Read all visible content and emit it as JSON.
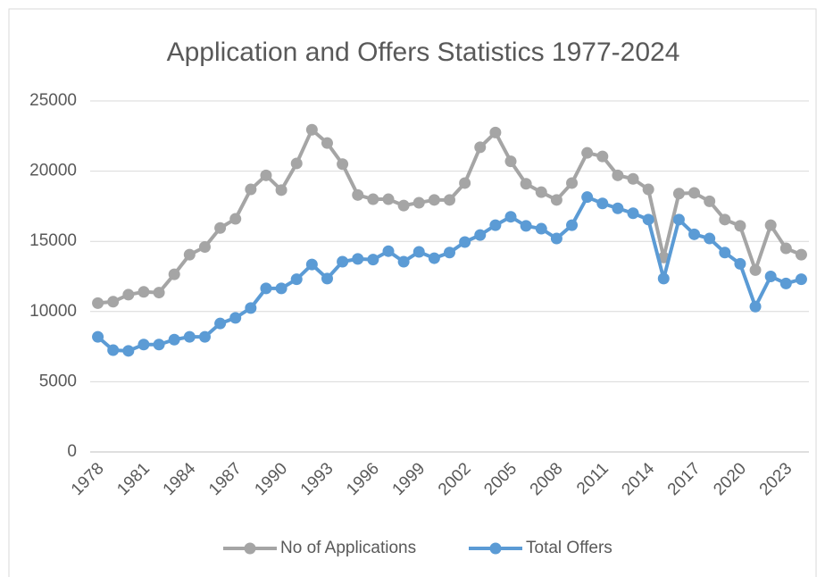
{
  "chart_data": {
    "type": "line",
    "title": "Application and Offers Statistics 1977-2024",
    "categories": [
      "1978",
      null,
      null,
      "1981",
      null,
      null,
      "1984",
      null,
      null,
      "1987",
      null,
      null,
      "1990",
      null,
      null,
      "1993",
      null,
      null,
      "1996",
      null,
      null,
      "1999",
      null,
      null,
      "2002",
      null,
      null,
      "2005",
      null,
      null,
      "2008",
      null,
      null,
      "2011",
      null,
      null,
      "2014",
      null,
      null,
      "2017",
      null,
      null,
      "2020",
      null,
      null,
      "2023",
      null
    ],
    "series": [
      {
        "name": "No of Applications",
        "color": "#a5a5a5",
        "values": [
          10600,
          10700,
          11200,
          11400,
          11350,
          12650,
          14050,
          14600,
          15950,
          16600,
          18700,
          19700,
          18650,
          20550,
          22950,
          22000,
          20500,
          18300,
          18000,
          18000,
          17550,
          17750,
          17950,
          17950,
          19150,
          21700,
          22750,
          20700,
          19100,
          18500,
          17950,
          19150,
          21300,
          21050,
          19700,
          19450,
          18700,
          13850,
          18400,
          18450,
          17850,
          16550,
          16100,
          12950,
          16150,
          14500,
          14050
        ]
      },
      {
        "name": "Total Offers",
        "color": "#5b9bd5",
        "values": [
          8200,
          7250,
          7200,
          7650,
          7650,
          8000,
          8200,
          8200,
          9150,
          9550,
          10250,
          11650,
          11650,
          12300,
          13350,
          12350,
          13550,
          13750,
          13700,
          14300,
          13550,
          14250,
          13800,
          14200,
          14950,
          15450,
          16150,
          16750,
          16100,
          15900,
          15200,
          16150,
          18150,
          17700,
          17350,
          17000,
          16550,
          12350,
          16550,
          15500,
          15200,
          14200,
          13400,
          10350,
          12500,
          12000,
          12300
        ]
      }
    ],
    "ylim": [
      0,
      25000
    ],
    "yticks": [
      0,
      5000,
      10000,
      15000,
      20000,
      25000
    ],
    "grid": true,
    "legend": "bottom"
  }
}
